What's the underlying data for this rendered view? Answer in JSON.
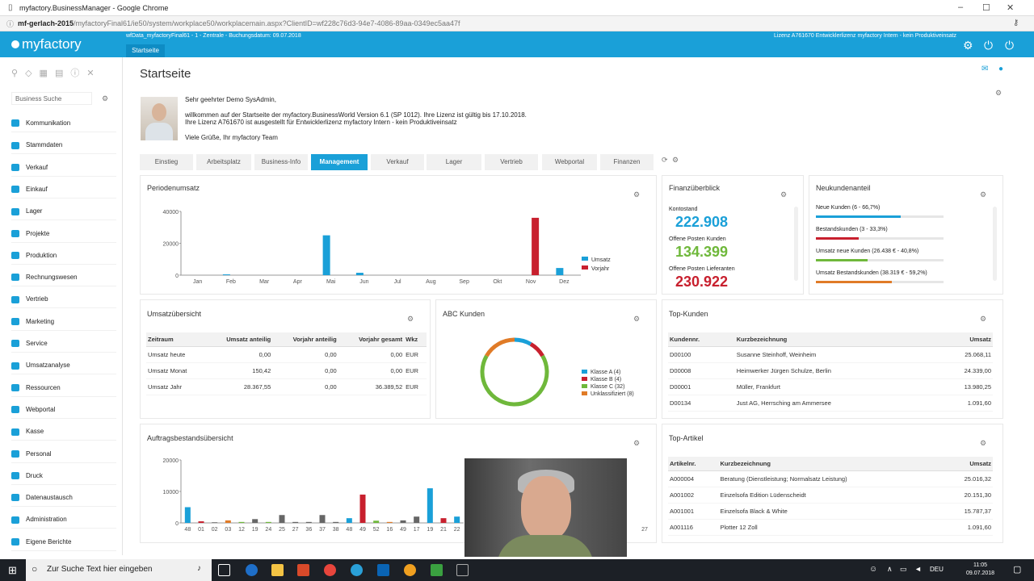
{
  "browser": {
    "title": "myfactory.BusinessManager - Google Chrome",
    "url_host": "mf-gerlach-2015",
    "url_path": "/myfactoryFinal61/ie50/system/workplace50/workplacemain.aspx?ClientID=wf228c76d3-94e7-4086-89aa-0349ec5aa47f"
  },
  "header": {
    "logo": "myfactory",
    "info": "wfData_myfactoryFinal61 - 1 - Zentrale - Buchungsdatum: 09.07.2018",
    "license": "Lizenz A761670 Entwicklerlizenz myfactory Intern - kein Produktiveinsatz",
    "tab": "Startseite"
  },
  "sidebar": {
    "search_placeholder": "Business Suche",
    "items": [
      {
        "label": "Kommunikation"
      },
      {
        "label": "Stammdaten"
      },
      {
        "label": "Verkauf"
      },
      {
        "label": "Einkauf"
      },
      {
        "label": "Lager"
      },
      {
        "label": "Projekte"
      },
      {
        "label": "Produktion"
      },
      {
        "label": "Rechnungswesen"
      },
      {
        "label": "Vertrieb"
      },
      {
        "label": "Marketing"
      },
      {
        "label": "Service"
      },
      {
        "label": "Umsatzanalyse"
      },
      {
        "label": "Ressourcen"
      },
      {
        "label": "Webportal"
      },
      {
        "label": "Kasse"
      },
      {
        "label": "Personal"
      },
      {
        "label": "Druck"
      },
      {
        "label": "Datenaustausch"
      },
      {
        "label": "Administration"
      },
      {
        "label": "Eigene Berichte"
      }
    ]
  },
  "page": {
    "title": "Startseite",
    "welcome": {
      "greeting": "Sehr geehrter Demo SysAdmin,",
      "line1": "willkommen auf der Startseite der myfactory.BusinessWorld Version 6.1 (SP 1012). Ihre Lizenz ist gültig bis 17.10.2018.",
      "line2": "Ihre Lizenz A761670 ist ausgestellt für Entwicklerlizenz myfactory Intern - kein Produktiveinsatz",
      "closing": "Viele Grüße, Ihr myfactory Team"
    },
    "tabs": [
      "Einstieg",
      "Arbeitsplatz",
      "Business-Info",
      "Management",
      "Verkauf",
      "Lager",
      "Vertrieb",
      "Webportal",
      "Finanzen"
    ],
    "active_tab": "Management"
  },
  "periodenumsatz": {
    "title": "Periodenumsatz",
    "chart_data": {
      "type": "bar",
      "categories": [
        "Jan",
        "Feb",
        "Mar",
        "Apr",
        "Mai",
        "Jun",
        "Jul",
        "Aug",
        "Sep",
        "Okt",
        "Nov",
        "Dez"
      ],
      "series": [
        {
          "name": "Umsatz",
          "color": "#1aa0d8",
          "values": [
            0,
            500,
            0,
            0,
            25000,
            1500,
            0,
            0,
            0,
            0,
            0,
            4500
          ]
        },
        {
          "name": "Vorjahr",
          "color": "#c8202e",
          "values": [
            0,
            0,
            0,
            0,
            0,
            0,
            0,
            0,
            0,
            0,
            36000,
            0
          ]
        }
      ],
      "yticks": [
        "40000",
        "20000",
        "0"
      ],
      "ylim": [
        0,
        40000
      ]
    }
  },
  "finanz": {
    "title": "Finanzüberblick",
    "kontostand_label": "Kontostand",
    "kontostand": "222.908",
    "kontostand_color": "#1aa0d8",
    "offene_kunden_label": "Offene Posten Kunden",
    "offene_kunden": "134.399",
    "offene_kunden_color": "#6fb83b",
    "offene_lief_label": "Offene Posten Lieferanten",
    "offene_lief": "230.922",
    "offene_lief_color": "#c8202e"
  },
  "neukunden": {
    "title": "Neukundenanteil",
    "rows": [
      {
        "label": "Neue Kunden (6 - 66,7%)",
        "fraction": 0.667,
        "color": "#1aa0d8"
      },
      {
        "label": "Bestandskunden (3 - 33,3%)",
        "fraction": 0.333,
        "color": "#c8202e"
      },
      {
        "label": "Umsatz neue Kunden (26.438 € - 40,8%)",
        "fraction": 0.408,
        "color": "#6fb83b"
      },
      {
        "label": "Umsatz Bestandskunden (38.319 € - 59,2%)",
        "fraction": 0.592,
        "color": "#e07b27"
      }
    ]
  },
  "umsatz": {
    "title": "Umsatzübersicht",
    "headers": [
      "Zeitraum",
      "Umsatz anteilig",
      "Vorjahr anteilig",
      "Vorjahr gesamt",
      "Wkz"
    ],
    "rows": [
      [
        "Umsatz heute",
        "0,00",
        "0,00",
        "0,00",
        "EUR"
      ],
      [
        "Umsatz Monat",
        "150,42",
        "0,00",
        "0,00",
        "EUR"
      ],
      [
        "Umsatz Jahr",
        "28.367,55",
        "0,00",
        "36.389,52",
        "EUR"
      ]
    ]
  },
  "abc": {
    "title": "ABC Kunden",
    "chart_data": {
      "type": "pie",
      "categories": [
        "Klasse A (4)",
        "Klasse B (4)",
        "Klasse C (32)",
        "Unklassifiziert (8)"
      ],
      "values": [
        4,
        4,
        32,
        8
      ],
      "colors": [
        "#1aa0d8",
        "#c8202e",
        "#6fb83b",
        "#e07b27"
      ]
    }
  },
  "topkunden": {
    "title": "Top-Kunden",
    "headers": [
      "Kundennr.",
      "Kurzbezeichnung",
      "Umsatz"
    ],
    "rows": [
      [
        "D00100",
        "Susanne Steinhoff, Weinheim",
        "25.068,11"
      ],
      [
        "D00008",
        "Heimwerker Jürgen Schulze, Berlin",
        "24.339,00"
      ],
      [
        "D00001",
        "Müller, Frankfurt",
        "13.980,25"
      ],
      [
        "D00134",
        "Just AG, Herrsching am Ammersee",
        "1.091,60"
      ]
    ]
  },
  "auftrag": {
    "title": "Auftragsbestandsübersicht",
    "chart_data": {
      "type": "bar",
      "categories": [
        "48",
        "01",
        "02",
        "03",
        "12",
        "19",
        "24",
        "25",
        "27",
        "36",
        "37",
        "38",
        "48",
        "49",
        "52",
        "16",
        "49",
        "17",
        "19",
        "21",
        "22"
      ],
      "series": [
        {
          "name": "Umsatz",
          "values": [
            5000,
            500,
            200,
            800,
            300,
            1200,
            300,
            2500,
            300,
            300,
            2500,
            300,
            1500,
            9000,
            700,
            300,
            800,
            2000,
            11000,
            1500,
            2000
          ]
        }
      ],
      "colors": [
        "#1aa0d8",
        "#c8202e",
        "#666",
        "#e07b27",
        "#6fb83b",
        "#666",
        "#6fb83b",
        "#666",
        "#666",
        "#666",
        "#666",
        "#666",
        "#1aa0d8",
        "#c8202e",
        "#6fb83b",
        "#e07b27",
        "#666",
        "#666",
        "#1aa0d8",
        "#c8202e",
        "#1aa0d8"
      ],
      "yticks": [
        "20000",
        "10000",
        "0"
      ],
      "ylim": [
        0,
        20000
      ],
      "extra_ticks": [
        "27"
      ]
    }
  },
  "topartikel": {
    "title": "Top-Artikel",
    "headers": [
      "Artikelnr.",
      "Kurzbezeichnung",
      "Umsatz"
    ],
    "rows": [
      [
        "A000004",
        "Beratung (Dienstleistung; Normalsatz Leistung)",
        "25.016,32"
      ],
      [
        "A001002",
        "Einzelsofa Edition Lüdenscheidt",
        "20.151,30"
      ],
      [
        "A001001",
        "Einzelsofa Black & White",
        "15.787,37"
      ],
      [
        "A001116",
        "Plotter 12 Zoll",
        "1.091,60"
      ]
    ]
  },
  "taskbar": {
    "search": "Zur Suche Text hier eingeben",
    "lang": "DEU",
    "time": "11:05",
    "date": "09.07.2018"
  }
}
